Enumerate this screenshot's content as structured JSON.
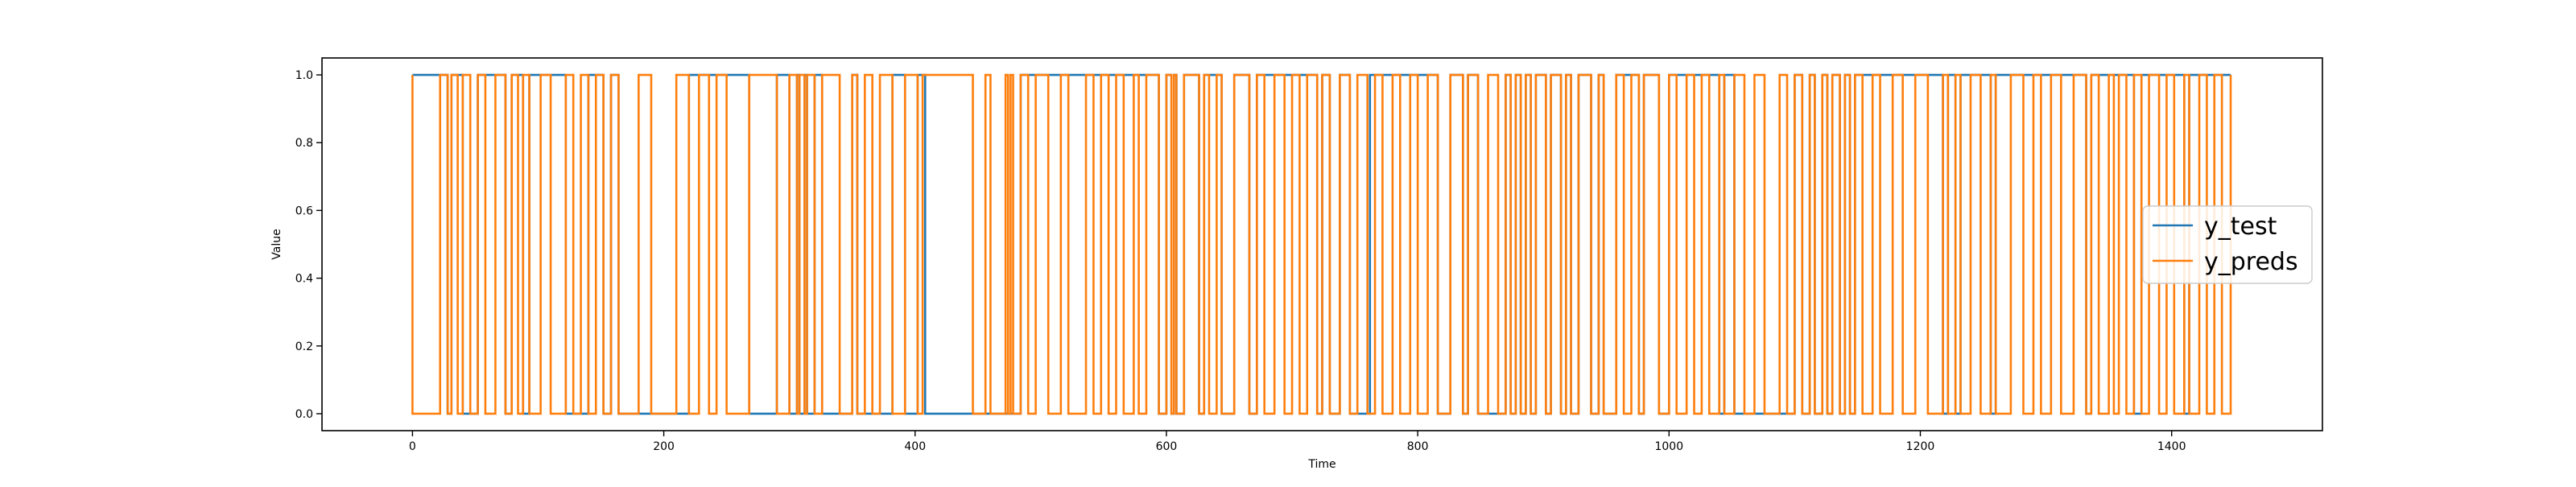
{
  "chart_data": {
    "type": "line",
    "title": "",
    "xlabel": "Time",
    "ylabel": "Value",
    "xlim": [
      -72,
      1520
    ],
    "ylim": [
      -0.05,
      1.05
    ],
    "xticks": [
      0,
      200,
      400,
      600,
      800,
      1000,
      1200,
      1400
    ],
    "yticks": [
      0.0,
      0.2,
      0.4,
      0.6,
      0.8,
      1.0
    ],
    "xtick_labels": [
      "0",
      "200",
      "400",
      "600",
      "800",
      "1000",
      "1200",
      "1400"
    ],
    "ytick_labels": [
      "0.0",
      "0.2",
      "0.4",
      "0.6",
      "0.8",
      "1.0"
    ],
    "grid": false,
    "legend_position": "center right",
    "series": [
      {
        "name": "y_test",
        "color": "#1f77b4",
        "line_style": "step",
        "start_value": 1,
        "x_end": 1447,
        "transitions": [
          28,
          31,
          40,
          52,
          74,
          79,
          88,
          93,
          122,
          140,
          152,
          158,
          164,
          220,
          268,
          290,
          300,
          306,
          308,
          312,
          314,
          320,
          326,
          350,
          354,
          382,
          392,
          402,
          408,
          484,
          594,
          600,
          604,
          606,
          608,
          614,
          626,
          630,
          644,
          654,
          666,
          672,
          720,
          724,
          730,
          738,
          746,
          762,
          816,
          826,
          836,
          840,
          848,
          870,
          874,
          878,
          882,
          886,
          890,
          894,
          902,
          906,
          914,
          918,
          922,
          928,
          938,
          944,
          948,
          958,
          976,
          980,
          992,
          1000,
          1040,
          1044,
          1052,
          1100,
          1106,
          1112,
          1116,
          1122,
          1126,
          1130,
          1136,
          1140,
          1144,
          1148,
          1218,
          1222,
          1228,
          1232,
          1256,
          1260,
          1332,
          1336,
          1370,
          1376,
          1410,
          1414
        ]
      },
      {
        "name": "y_preds",
        "color": "#ff7f0e",
        "line_style": "step",
        "start_value": 1,
        "x_end": 1447,
        "transitions": [
          0,
          22,
          28,
          31,
          36,
          40,
          46,
          52,
          58,
          66,
          74,
          79,
          84,
          88,
          93,
          102,
          110,
          122,
          128,
          134,
          140,
          146,
          152,
          158,
          164,
          180,
          190,
          210,
          220,
          228,
          236,
          242,
          250,
          268,
          290,
          300,
          306,
          308,
          312,
          314,
          320,
          326,
          340,
          350,
          354,
          360,
          366,
          372,
          382,
          392,
          402,
          406,
          446,
          456,
          460,
          472,
          474,
          476,
          478,
          484,
          490,
          496,
          506,
          516,
          522,
          536,
          542,
          548,
          554,
          560,
          566,
          574,
          578,
          584,
          594,
          600,
          604,
          606,
          608,
          614,
          626,
          630,
          634,
          640,
          644,
          654,
          666,
          672,
          678,
          686,
          694,
          700,
          706,
          712,
          720,
          724,
          730,
          738,
          746,
          752,
          760,
          766,
          772,
          780,
          786,
          794,
          800,
          808,
          816,
          826,
          836,
          840,
          848,
          856,
          864,
          870,
          874,
          878,
          882,
          886,
          890,
          894,
          902,
          906,
          914,
          918,
          922,
          928,
          938,
          944,
          948,
          958,
          964,
          970,
          976,
          980,
          992,
          1000,
          1006,
          1014,
          1020,
          1026,
          1032,
          1040,
          1044,
          1052,
          1060,
          1068,
          1076,
          1088,
          1094,
          1100,
          1106,
          1112,
          1116,
          1122,
          1126,
          1130,
          1136,
          1140,
          1144,
          1148,
          1154,
          1162,
          1168,
          1178,
          1186,
          1196,
          1206,
          1218,
          1222,
          1228,
          1232,
          1240,
          1248,
          1256,
          1260,
          1272,
          1282,
          1290,
          1296,
          1304,
          1312,
          1322,
          1332,
          1336,
          1342,
          1350,
          1354,
          1358,
          1364,
          1370,
          1376,
          1382,
          1390,
          1396,
          1402,
          1410,
          1414,
          1422,
          1428,
          1434,
          1440,
          1447
        ]
      }
    ]
  }
}
